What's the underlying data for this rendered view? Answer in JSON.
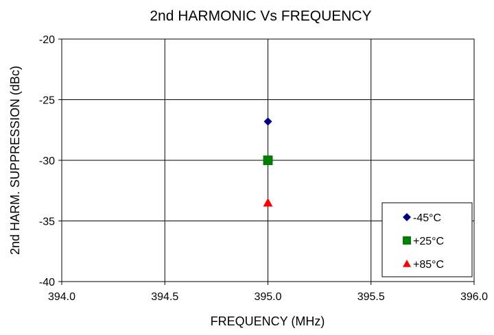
{
  "chart_data": {
    "type": "scatter",
    "title": "2nd HARMONIC Vs FREQUENCY",
    "xlabel": "FREQUENCY (MHz)",
    "ylabel": "2nd HARM. SUPPRESSION (dBc)",
    "xlim": [
      394.0,
      396.0
    ],
    "ylim": [
      -40,
      -20
    ],
    "xticks": [
      "394.0",
      "394.5",
      "395.0",
      "395.5",
      "396.0"
    ],
    "yticks": [
      "-20",
      "-25",
      "-30",
      "-35",
      "-40"
    ],
    "grid": true,
    "legend_position": "bottom-right",
    "series": [
      {
        "name": "-45°C",
        "marker": "diamond",
        "color": "#00007f",
        "x": [
          395.0
        ],
        "y": [
          -26.8
        ]
      },
      {
        "name": "+25°C",
        "marker": "square",
        "color": "#007f00",
        "x": [
          395.0
        ],
        "y": [
          -30.0
        ]
      },
      {
        "name": "+85°C",
        "marker": "triangle",
        "color": "#ff0000",
        "x": [
          395.0
        ],
        "y": [
          -33.5
        ]
      }
    ]
  }
}
